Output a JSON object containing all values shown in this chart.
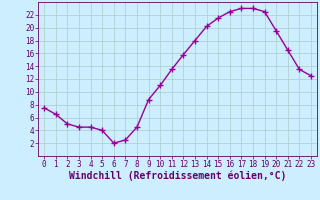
{
  "x": [
    0,
    1,
    2,
    3,
    4,
    5,
    6,
    7,
    8,
    9,
    10,
    11,
    12,
    13,
    14,
    15,
    16,
    17,
    18,
    19,
    20,
    21,
    22,
    23
  ],
  "y": [
    7.5,
    6.5,
    5.0,
    4.5,
    4.5,
    4.0,
    2.0,
    2.5,
    4.5,
    8.8,
    11.0,
    13.5,
    15.8,
    18.0,
    20.2,
    21.5,
    22.5,
    23.0,
    23.0,
    22.5,
    19.5,
    16.5,
    13.5,
    12.5
  ],
  "line_color": "#990099",
  "marker": "+",
  "marker_size": 4,
  "bg_color": "#cceeff",
  "grid_color": "#aacccc",
  "xlabel": "Windchill (Refroidissement éolien,°C)",
  "ylim": [
    0,
    24
  ],
  "xlim": [
    -0.5,
    23.5
  ],
  "yticks": [
    2,
    4,
    6,
    8,
    10,
    12,
    14,
    16,
    18,
    20,
    22
  ],
  "xticks": [
    0,
    1,
    2,
    3,
    4,
    5,
    6,
    7,
    8,
    9,
    10,
    11,
    12,
    13,
    14,
    15,
    16,
    17,
    18,
    19,
    20,
    21,
    22,
    23
  ],
  "font_color": "#660066",
  "tick_fontsize": 5.5,
  "xlabel_fontsize": 7.0,
  "line_width": 1.0,
  "marker_linewidth": 1.0
}
